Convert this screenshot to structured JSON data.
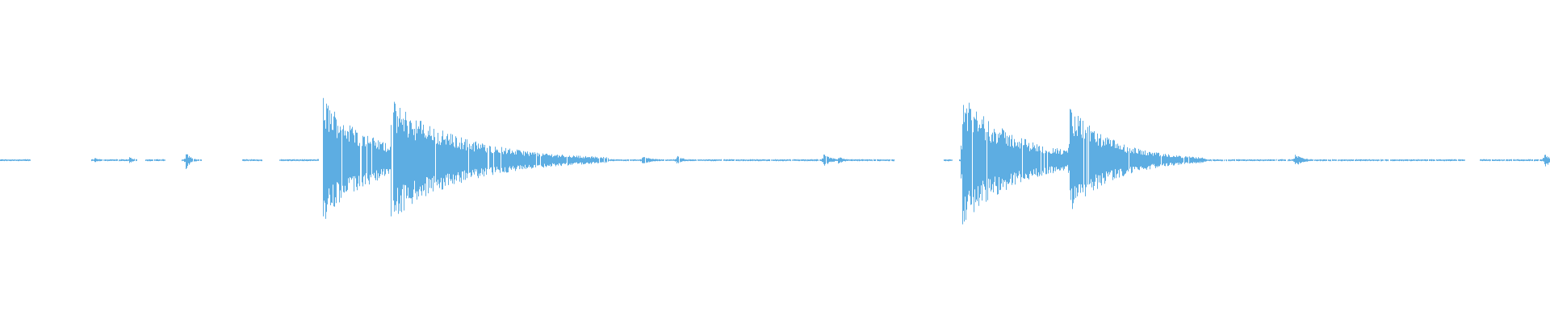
{
  "chart_data": {
    "type": "waveform",
    "title": "",
    "xlabel": "",
    "ylabel": "",
    "grid": false,
    "legend": "none",
    "color": "#5dade2"
  }
}
